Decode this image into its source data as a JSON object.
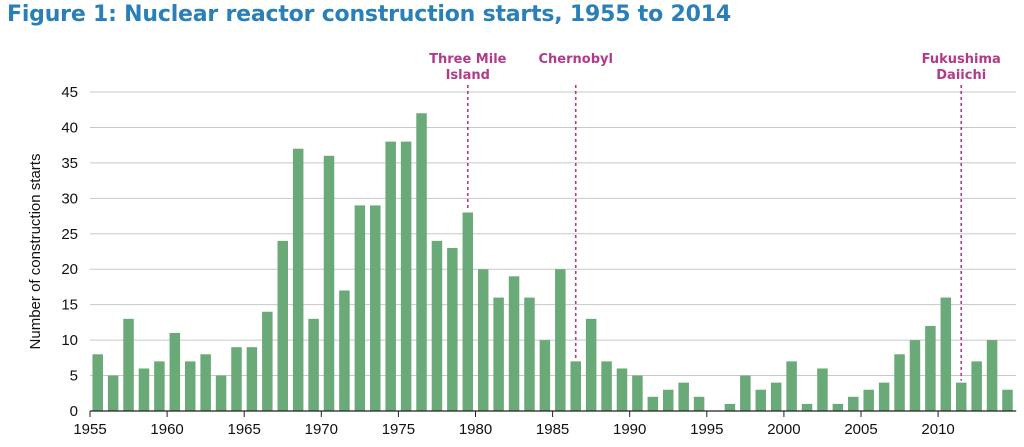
{
  "title": "Figure 1: Nuclear reactor construction starts, 1955 to 2014",
  "colors": {
    "title": "#2a7fb8",
    "bar": "#6aa978",
    "grid": "#c8c8c8",
    "event": "#b33a8a"
  },
  "chart_data": {
    "type": "bar",
    "title": "Figure 1: Nuclear reactor construction starts, 1955 to 2014",
    "xlabel": "",
    "ylabel": "Number of construction starts",
    "ylim": [
      0,
      45
    ],
    "yticks": [
      0,
      5,
      10,
      15,
      20,
      25,
      30,
      35,
      40,
      45
    ],
    "xticks": [
      1955,
      1960,
      1965,
      1970,
      1975,
      1980,
      1985,
      1990,
      1995,
      2000,
      2005,
      2010
    ],
    "grid": true,
    "legend": "none",
    "categories": [
      1955,
      1956,
      1957,
      1958,
      1959,
      1960,
      1961,
      1962,
      1963,
      1964,
      1965,
      1966,
      1967,
      1968,
      1969,
      1970,
      1971,
      1972,
      1973,
      1974,
      1975,
      1976,
      1977,
      1978,
      1979,
      1980,
      1981,
      1982,
      1983,
      1984,
      1985,
      1986,
      1987,
      1988,
      1989,
      1990,
      1991,
      1992,
      1993,
      1994,
      1995,
      1996,
      1997,
      1998,
      1999,
      2000,
      2001,
      2002,
      2003,
      2004,
      2005,
      2006,
      2007,
      2008,
      2009,
      2010,
      2011,
      2012,
      2013,
      2014
    ],
    "values": [
      8,
      5,
      13,
      6,
      7,
      11,
      7,
      8,
      5,
      9,
      9,
      14,
      24,
      37,
      13,
      36,
      17,
      29,
      29,
      38,
      38,
      42,
      24,
      23,
      28,
      20,
      16,
      19,
      16,
      10,
      20,
      7,
      13,
      7,
      6,
      5,
      2,
      3,
      4,
      2,
      0,
      1,
      5,
      3,
      4,
      7,
      1,
      6,
      1,
      2,
      3,
      4,
      8,
      10,
      12,
      16,
      4,
      7,
      10,
      3
    ],
    "annotations": [
      {
        "year": 1979,
        "lines": [
          "Three Mile",
          "Island"
        ]
      },
      {
        "year": 1986,
        "lines": [
          "Chernobyl"
        ]
      },
      {
        "year": 2011,
        "lines": [
          "Fukushima",
          "Daiichi"
        ]
      }
    ]
  }
}
